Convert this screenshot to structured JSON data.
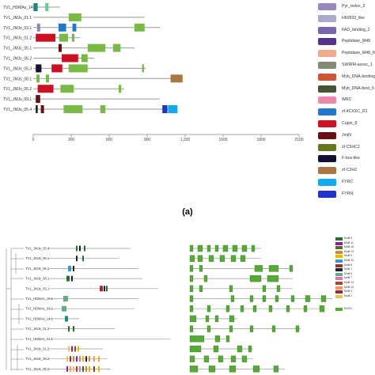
{
  "panel_a": {
    "genes": [
      {
        "name": "TV1_HDMAs_14.1",
        "length": 210,
        "domains": [
          {
            "start": 2,
            "end": 35,
            "color": "#1a8a7a"
          },
          {
            "start": 95,
            "end": 120,
            "color": "#66cc99"
          }
        ]
      },
      {
        "name": "TV1_JMJs_01.1",
        "length": 880,
        "domains": [
          {
            "start": 280,
            "end": 380,
            "color": "#77bb44"
          }
        ]
      },
      {
        "name": "TV1_JMJs_03.1",
        "length": 1000,
        "domains": [
          {
            "start": 30,
            "end": 55,
            "color": "#8888bb"
          },
          {
            "start": 200,
            "end": 260,
            "color": "#2277cc"
          },
          {
            "start": 310,
            "end": 340,
            "color": "#2277cc"
          },
          {
            "start": 800,
            "end": 880,
            "color": "#77bb44"
          }
        ]
      },
      {
        "name": "TV1_JMJs_01.2",
        "length": 370,
        "domains": [
          {
            "start": 20,
            "end": 175,
            "color": "#cc1122"
          },
          {
            "start": 205,
            "end": 275,
            "color": "#77bb44"
          },
          {
            "start": 305,
            "end": 325,
            "color": "#77bb44"
          }
        ]
      },
      {
        "name": "TV1_JMJs_05.1",
        "length": 800,
        "domains": [
          {
            "start": 200,
            "end": 225,
            "color": "#661111"
          },
          {
            "start": 430,
            "end": 570,
            "color": "#77bb44"
          },
          {
            "start": 630,
            "end": 690,
            "color": "#77bb44"
          }
        ]
      },
      {
        "name": "TV1_JMJs_06.2",
        "length": 480,
        "domains": [
          {
            "start": 225,
            "end": 355,
            "color": "#cc1122"
          },
          {
            "start": 380,
            "end": 430,
            "color": "#77bb44"
          }
        ]
      },
      {
        "name": "TV1_JMJs_05.3",
        "length": 890,
        "domains": [
          {
            "start": 20,
            "end": 65,
            "color": "#111133"
          },
          {
            "start": 145,
            "end": 230,
            "color": "#cc1122"
          },
          {
            "start": 280,
            "end": 430,
            "color": "#77bb44"
          },
          {
            "start": 860,
            "end": 875,
            "color": "#77bb44"
          }
        ]
      },
      {
        "name": "TV1_JMJs_08.1",
        "length": 1180,
        "domains": [
          {
            "start": 25,
            "end": 50,
            "color": "#77bb44"
          },
          {
            "start": 100,
            "end": 125,
            "color": "#77bb44"
          },
          {
            "start": 1085,
            "end": 1180,
            "color": "#aa7744"
          }
        ]
      },
      {
        "name": "TV1_JMJs_05.2",
        "length": 720,
        "domains": [
          {
            "start": 35,
            "end": 160,
            "color": "#cc1122"
          },
          {
            "start": 215,
            "end": 320,
            "color": "#77bb44"
          },
          {
            "start": 675,
            "end": 695,
            "color": "#77bb44"
          }
        ]
      },
      {
        "name": "TV1_JMJs_09.1",
        "length": 1000,
        "domains": [
          {
            "start": 20,
            "end": 55,
            "color": "#661111"
          }
        ]
      },
      {
        "name": "TV1_JMJs_05.4",
        "length": 1120,
        "domains": [
          {
            "start": 20,
            "end": 35,
            "color": "#111111"
          },
          {
            "start": 60,
            "end": 85,
            "color": "#661111"
          },
          {
            "start": 240,
            "end": 390,
            "color": "#77bb44"
          },
          {
            "start": 530,
            "end": 570,
            "color": "#77bb44"
          },
          {
            "start": 1020,
            "end": 1060,
            "color": "#2233cc"
          },
          {
            "start": 1065,
            "end": 1140,
            "color": "#11aaee"
          }
        ]
      }
    ],
    "axis": {
      "min": 0,
      "max": 2100,
      "ticks": [
        0,
        300,
        600,
        900,
        1200,
        1500,
        1800,
        2100
      ],
      "tick_labels": [
        "0",
        "300",
        "600",
        "900",
        "1,200",
        "1500",
        "1800",
        "2100"
      ]
    },
    "legend": [
      {
        "label": "Pyr_redox_2",
        "color": "#9988bb"
      },
      {
        "label": "H60933_like",
        "color": "#aaaacc"
      },
      {
        "label": "FAD_binding_2",
        "color": "#7766aa"
      },
      {
        "label": "Peptidase_M48",
        "color": "#553388"
      },
      {
        "label": "Peptidase_M48_N",
        "color": "#f0a98c"
      },
      {
        "label": "SWIRM-assoc_1",
        "color": "#888877"
      },
      {
        "label": "Myb_DNA-binding",
        "color": "#cc5533"
      },
      {
        "label": "Myb_DNA-bind_6",
        "color": "#445533"
      },
      {
        "label": "WRC",
        "color": "#ee88aa"
      },
      {
        "label": "zf-4CXXC_R1",
        "color": "#2277cc"
      },
      {
        "label": "Cupin_8",
        "color": "#cc1122"
      },
      {
        "label": "JmjN",
        "color": "#661111"
      },
      {
        "label": "zf-C5HC2",
        "color": "#667722"
      },
      {
        "label": "F-box-like",
        "color": "#111133"
      },
      {
        "label": "zf-C2H2",
        "color": "#aa7744"
      },
      {
        "label": "FYRC",
        "color": "#11aaee"
      },
      {
        "label": "FYRN",
        "color": "#2233cc"
      }
    ]
  },
  "panel_label": "(a)",
  "panel_b": {
    "tree_labels": [
      "TV1_JMJs_03.4",
      "TV1_JMJs_05.1",
      "TV1_JMJs_09.1",
      "TV1_JMJs_08.1",
      "TV1_JMJs_03.1",
      "TV1_HDMAs_10.1",
      "TV1_HDMAs_03.1",
      "TV1_HDMAs_14.1",
      "TV1_JMJs_01.2",
      "TV1_HDMAs_01.1",
      "TV1_JMJs_01.2",
      "TV1_JMJs_05.3",
      "TV1_JMJs_05.2"
    ],
    "legend": [
      {
        "label": "Motif 4",
        "color": "#2a6e2a"
      },
      {
        "label": "Motif 11",
        "color": "#882299"
      },
      {
        "label": "Motif 15",
        "color": "#556b2f"
      },
      {
        "label": "Motif 13",
        "color": "#cc8833"
      },
      {
        "label": "Motif 9",
        "color": "#e6b800"
      },
      {
        "label": "Motif 10",
        "color": "#3399cc"
      },
      {
        "label": "Motif 8",
        "color": "#993333"
      },
      {
        "label": "Motif 1",
        "color": "#222222"
      },
      {
        "label": "Motif 6",
        "color": "#66aa88"
      },
      {
        "label": "Motif 7",
        "color": "#dd77aa"
      },
      {
        "label": "Motif 14",
        "color": "#aa4422"
      },
      {
        "label": "Motif 12",
        "color": "#ee9966"
      },
      {
        "label": "Motif 3",
        "color": "#aa2233"
      },
      {
        "label": "Motif 2",
        "color": "#e3c84c"
      },
      {
        "label": "EXON",
        "color": "#55aa33"
      }
    ]
  }
}
